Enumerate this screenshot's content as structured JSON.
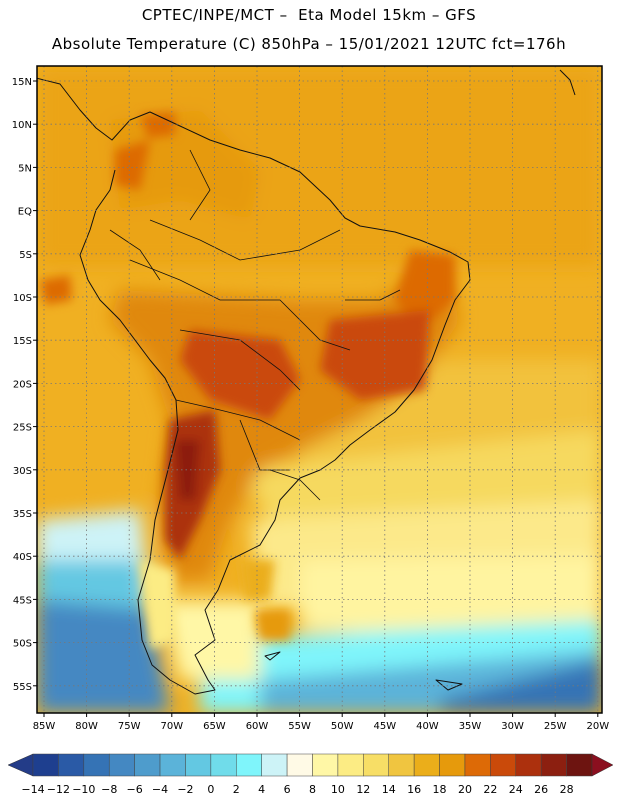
{
  "header": {
    "line1": "CPTEC/INPE/MCT –  Eta Model 15km – GFS",
    "line2": "Absolute Temperature (C) 850hPa – 15/01/2021 12UTC fct=176h"
  },
  "map": {
    "lat_labels": [
      "15N",
      "10N",
      "5N",
      "EQ",
      "5S",
      "10S",
      "15S",
      "20S",
      "25S",
      "30S",
      "35S",
      "40S",
      "45S",
      "50S",
      "55S"
    ],
    "lon_labels": [
      "85W",
      "80W",
      "75W",
      "70W",
      "65W",
      "60W",
      "55W",
      "50W",
      "45W",
      "40W",
      "35W",
      "30W",
      "25W",
      "20W"
    ]
  },
  "legend": {
    "labels": [
      "-14",
      "-12",
      "-10",
      "-8",
      "-6",
      "-4",
      "-2",
      "0",
      "2",
      "4",
      "6",
      "8",
      "10",
      "12",
      "14",
      "16",
      "18",
      "20",
      "22",
      "24",
      "26",
      "28"
    ],
    "colors": [
      "#1e3f8f",
      "#2a5aa6",
      "#3573b5",
      "#4488c2",
      "#4e9ccc",
      "#5bb3d9",
      "#63c8e2",
      "#70dcea",
      "#7ff5fb",
      "#cdf3f7",
      "#fffae6",
      "#fff7a6",
      "#fcec84",
      "#f7de66",
      "#f0c540",
      "#ebae1a",
      "#e69a0c",
      "#dd6a06",
      "#ca4a0a",
      "#ac300d",
      "#8c1f10",
      "#6d1410"
    ],
    "low_color": "#233c88",
    "high_color": "#8b0f1f"
  }
}
